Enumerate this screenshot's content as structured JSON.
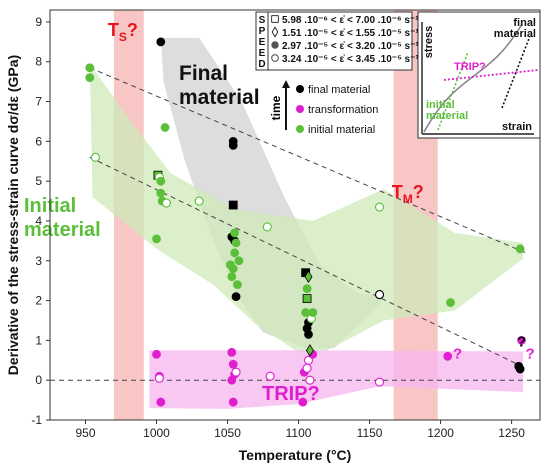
{
  "chart_data": {
    "type": "scatter",
    "xlabel": "Temperature (°C)",
    "ylabel": "Derivative of the stress-strain curve dσ/dε (GPa)",
    "xlim": [
      925,
      1270
    ],
    "ylim": [
      -1,
      9.3
    ],
    "xticks": [
      950,
      1000,
      1050,
      1100,
      1150,
      1200,
      1250
    ],
    "yticks": [
      -1,
      0,
      1,
      2,
      3,
      4,
      5,
      6,
      7,
      8,
      9
    ],
    "colors": {
      "final": "#000000",
      "transformation": "#e01ed0",
      "initial": "#5bbf3a",
      "band_final": "#cfcfcf",
      "band_initial": "#cdeab8",
      "band_trip": "#f5b6ee",
      "vband": "#f7b3b3",
      "marker_label": "#e8141e"
    },
    "bands": {
      "ts": {
        "label_main": "T",
        "label_sub": "S",
        "label_suffix": "?",
        "x0": 970,
        "x1": 991
      },
      "tm": {
        "label_main": "T",
        "label_sub": "M",
        "label_suffix": "?",
        "x0": 1167,
        "x1": 1198
      }
    },
    "region_labels": {
      "final": [
        "Final",
        "material"
      ],
      "initial": [
        "Initial",
        "material"
      ],
      "trip": "TRIP?"
    },
    "reference_lines": [
      {
        "points": [
          [
            953,
            7.85
          ],
          [
            1260,
            3.2
          ]
        ]
      },
      {
        "points": [
          [
            953,
            5.6
          ],
          [
            1260,
            0.3
          ]
        ]
      }
    ],
    "zero_line": 0,
    "legend": {
      "title": "time",
      "entries": [
        {
          "label": "final material",
          "color_key": "final"
        },
        {
          "label": "transformation",
          "color_key": "transformation"
        },
        {
          "label": "initial material",
          "color_key": "initial"
        }
      ]
    },
    "speed_box": {
      "letters": [
        "S",
        "P",
        "E",
        "E",
        "D"
      ],
      "rows": [
        {
          "marker": "square",
          "text": "5.98 .10⁻⁶ < ε̇ < 7.00 .10⁻⁶ s⁻¹"
        },
        {
          "marker": "diamond",
          "text": "1.51 .10⁻⁵ < ε̇ < 1.55 .10⁻⁵ s⁻¹"
        },
        {
          "marker": "circle",
          "text": "2.97 .10⁻⁵ < ε̇ < 3.20 .10⁻⁵ s⁻¹"
        },
        {
          "marker": "open-circle",
          "text": "3.24 .10⁻⁵ < ε̇ < 3.45 .10⁻⁵ s⁻¹"
        }
      ]
    },
    "inset": {
      "ylabel": "stress",
      "xlabel": "strain",
      "final_lines": [
        "final",
        "material"
      ],
      "trip": "TRIP?",
      "initial_lines": [
        "initial",
        "material"
      ]
    },
    "annotations": [
      {
        "text": "?",
        "x": 1257,
        "y": 0.85,
        "color_key": "final"
      },
      {
        "text": "?",
        "x": 1263,
        "y": 0.55,
        "color_key": "transformation"
      },
      {
        "text": "?",
        "x": 1212,
        "y": 0.55,
        "color_key": "transformation"
      }
    ],
    "series": [
      {
        "name": "final material",
        "color_key": "final",
        "points": [
          [
            1003,
            8.5,
            "circle"
          ],
          [
            1054,
            5.9,
            "circle"
          ],
          [
            1054,
            6.0,
            "circle"
          ],
          [
            1054,
            4.4,
            "square"
          ],
          [
            1053,
            3.6,
            "circle"
          ],
          [
            1055,
            3.5,
            "circle"
          ],
          [
            1056,
            2.1,
            "circle"
          ],
          [
            1105,
            2.7,
            "square"
          ],
          [
            1106,
            1.3,
            "circle"
          ],
          [
            1107,
            1.45,
            "circle"
          ],
          [
            1107,
            1.15,
            "circle"
          ],
          [
            1157,
            2.15,
            "open-circle"
          ],
          [
            1255,
            0.35,
            "circle"
          ],
          [
            1256,
            0.28,
            "circle"
          ]
        ]
      },
      {
        "name": "transformation",
        "color_key": "transformation",
        "points": [
          [
            1000,
            0.65,
            "circle"
          ],
          [
            1002,
            0.1,
            "circle"
          ],
          [
            1002,
            0.05,
            "open-circle"
          ],
          [
            1003,
            -0.55,
            "circle"
          ],
          [
            1053,
            0.7,
            "circle"
          ],
          [
            1054,
            0.4,
            "circle"
          ],
          [
            1055,
            0.15,
            "circle"
          ],
          [
            1053,
            0.0,
            "circle"
          ],
          [
            1056,
            0.2,
            "open-circle"
          ],
          [
            1054,
            -0.55,
            "circle"
          ],
          [
            1080,
            0.1,
            "open-circle"
          ],
          [
            1103,
            -0.55,
            "circle"
          ],
          [
            1104,
            0.2,
            "circle"
          ],
          [
            1106,
            0.3,
            "open-circle"
          ],
          [
            1107,
            0.5,
            "open-circle"
          ],
          [
            1108,
            0.0,
            "open-circle"
          ],
          [
            1110,
            0.65,
            "circle"
          ],
          [
            1157,
            -0.05,
            "open-circle"
          ],
          [
            1205,
            0.6,
            "circle"
          ],
          [
            1257,
            1.0,
            "circle"
          ]
        ]
      },
      {
        "name": "initial material",
        "color_key": "initial",
        "points": [
          [
            953,
            7.85,
            "circle"
          ],
          [
            953,
            7.6,
            "circle"
          ],
          [
            957,
            5.6,
            "open-circle"
          ],
          [
            1000,
            3.55,
            "circle"
          ],
          [
            1001,
            5.15,
            "square"
          ],
          [
            1002,
            5.1,
            "open-circle"
          ],
          [
            1003,
            5.0,
            "circle"
          ],
          [
            1003,
            4.7,
            "circle"
          ],
          [
            1004,
            4.5,
            "circle"
          ],
          [
            1006,
            6.35,
            "circle"
          ],
          [
            1007,
            4.45,
            "open-circle"
          ],
          [
            1030,
            4.5,
            "open-circle"
          ],
          [
            1052,
            2.9,
            "circle"
          ],
          [
            1053,
            2.6,
            "circle"
          ],
          [
            1054,
            2.8,
            "circle"
          ],
          [
            1055,
            3.7,
            "circle"
          ],
          [
            1055,
            3.2,
            "circle"
          ],
          [
            1056,
            3.45,
            "circle"
          ],
          [
            1057,
            2.4,
            "circle"
          ],
          [
            1058,
            3.0,
            "circle"
          ],
          [
            1078,
            3.85,
            "open-circle"
          ],
          [
            1105,
            1.7,
            "circle"
          ],
          [
            1106,
            2.3,
            "circle"
          ],
          [
            1106,
            2.05,
            "square"
          ],
          [
            1107,
            2.6,
            "diamond"
          ],
          [
            1108,
            0.75,
            "diamond"
          ],
          [
            1109,
            1.55,
            "open-circle"
          ],
          [
            1110,
            1.7,
            "circle"
          ],
          [
            1157,
            4.35,
            "open-circle"
          ],
          [
            1207,
            1.95,
            "circle"
          ],
          [
            1256,
            3.3,
            "circle"
          ]
        ]
      }
    ]
  }
}
